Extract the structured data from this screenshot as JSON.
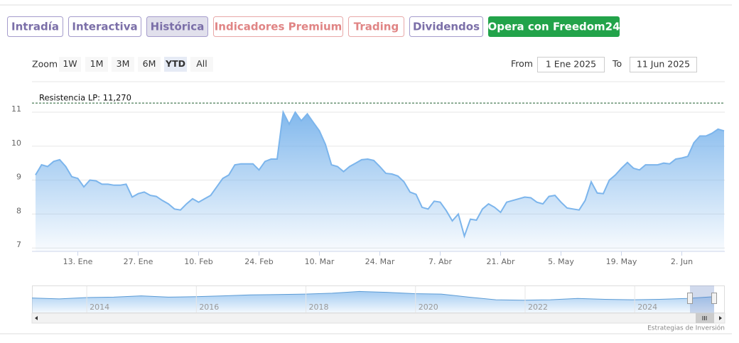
{
  "tabs": [
    "Intradía",
    "Interactiva",
    "Histórica",
    "Indicadores Premium",
    "Trading",
    "Dividendos",
    "Opera con Freedom24"
  ],
  "range_selector": {
    "label": "Zoom",
    "buttons": [
      "1W",
      "1M",
      "3M",
      "6M",
      "YTD",
      "All"
    ],
    "from_label": "From",
    "from": "1 Ene 2025",
    "to_label": "To",
    "to": "11 Jun 2025"
  },
  "chart_data": {
    "type": "area",
    "categories": [
      null,
      null,
      null,
      null,
      null,
      null,
      null,
      "13. Ene",
      null,
      null,
      null,
      null,
      null,
      null,
      null,
      null,
      null,
      "27. Ene",
      null,
      null,
      null,
      null,
      null,
      null,
      null,
      null,
      null,
      "10. Feb",
      null,
      null,
      null,
      null,
      null,
      null,
      null,
      null,
      null,
      "24. Feb",
      null,
      null,
      null,
      null,
      null,
      null,
      null,
      null,
      null,
      "10. Mar",
      null,
      null,
      null,
      null,
      null,
      null,
      null,
      null,
      null,
      "24. Mar",
      null,
      null,
      null,
      null,
      null,
      null,
      null,
      null,
      null,
      "7. Abr",
      null,
      null,
      null,
      null,
      null,
      null,
      null,
      null,
      null,
      "21. Abr",
      null,
      null,
      null,
      null,
      null,
      null,
      null,
      null,
      null,
      "5. May",
      null,
      null,
      null,
      null,
      null,
      null,
      null,
      null,
      null,
      "19. May",
      null,
      null,
      null,
      null,
      null,
      null,
      null,
      null,
      null,
      "2. Jun",
      null,
      null,
      null,
      null,
      null,
      null,
      null
    ],
    "values": [
      9.15,
      9.45,
      9.4,
      9.55,
      9.6,
      9.4,
      9.1,
      9.05,
      8.8,
      9.0,
      8.98,
      8.88,
      8.88,
      8.85,
      8.85,
      8.88,
      8.5,
      8.6,
      8.65,
      8.55,
      8.52,
      8.4,
      8.3,
      8.15,
      8.12,
      8.3,
      8.45,
      8.35,
      8.45,
      8.55,
      8.8,
      9.05,
      9.15,
      9.45,
      9.48,
      9.48,
      9.48,
      9.3,
      9.55,
      9.62,
      9.62,
      11.0,
      10.65,
      11.0,
      10.75,
      10.95,
      10.7,
      10.45,
      10.05,
      9.45,
      9.4,
      9.25,
      9.4,
      9.5,
      9.6,
      9.62,
      9.58,
      9.4,
      9.2,
      9.18,
      9.12,
      8.95,
      8.65,
      8.58,
      8.2,
      8.15,
      8.38,
      8.35,
      8.1,
      7.8,
      8.0,
      7.35,
      7.85,
      7.82,
      8.15,
      8.3,
      8.2,
      8.05,
      8.35,
      8.4,
      8.45,
      8.5,
      8.48,
      8.35,
      8.3,
      8.52,
      8.55,
      8.35,
      8.18,
      8.15,
      8.12,
      8.4,
      8.95,
      8.62,
      8.6,
      9.0,
      9.15,
      9.35,
      9.52,
      9.35,
      9.3,
      9.45,
      9.45,
      9.45,
      9.5,
      9.48,
      9.62,
      9.65,
      9.7,
      10.1,
      10.3,
      10.3,
      10.38,
      10.5,
      10.45
    ],
    "color": "#7cb5ec",
    "ylim": [
      6.9,
      11.9
    ],
    "yticks": [
      7,
      8,
      9,
      10,
      11
    ],
    "grid": true,
    "annotation": {
      "value": 11.27,
      "label": "Resistencia LP: 11,270"
    }
  },
  "navigator": {
    "values": [
      9.3,
      9.1,
      9.4,
      9.5,
      9.8,
      9.5,
      9.6,
      9.8,
      10.0,
      10.1,
      10.2,
      10.4,
      10.8,
      10.6,
      10.3,
      10.2,
      9.5,
      8.9,
      8.8,
      8.9,
      9.2,
      9.0,
      8.9,
      9.0,
      9.2,
      9.6
    ],
    "xlim": [
      2013,
      2025.45
    ],
    "xticks": [
      2014,
      2016,
      2018,
      2020,
      2022,
      2024
    ],
    "ylim": [
      6,
      12
    ]
  },
  "credits": "Estrategias de Inversión"
}
